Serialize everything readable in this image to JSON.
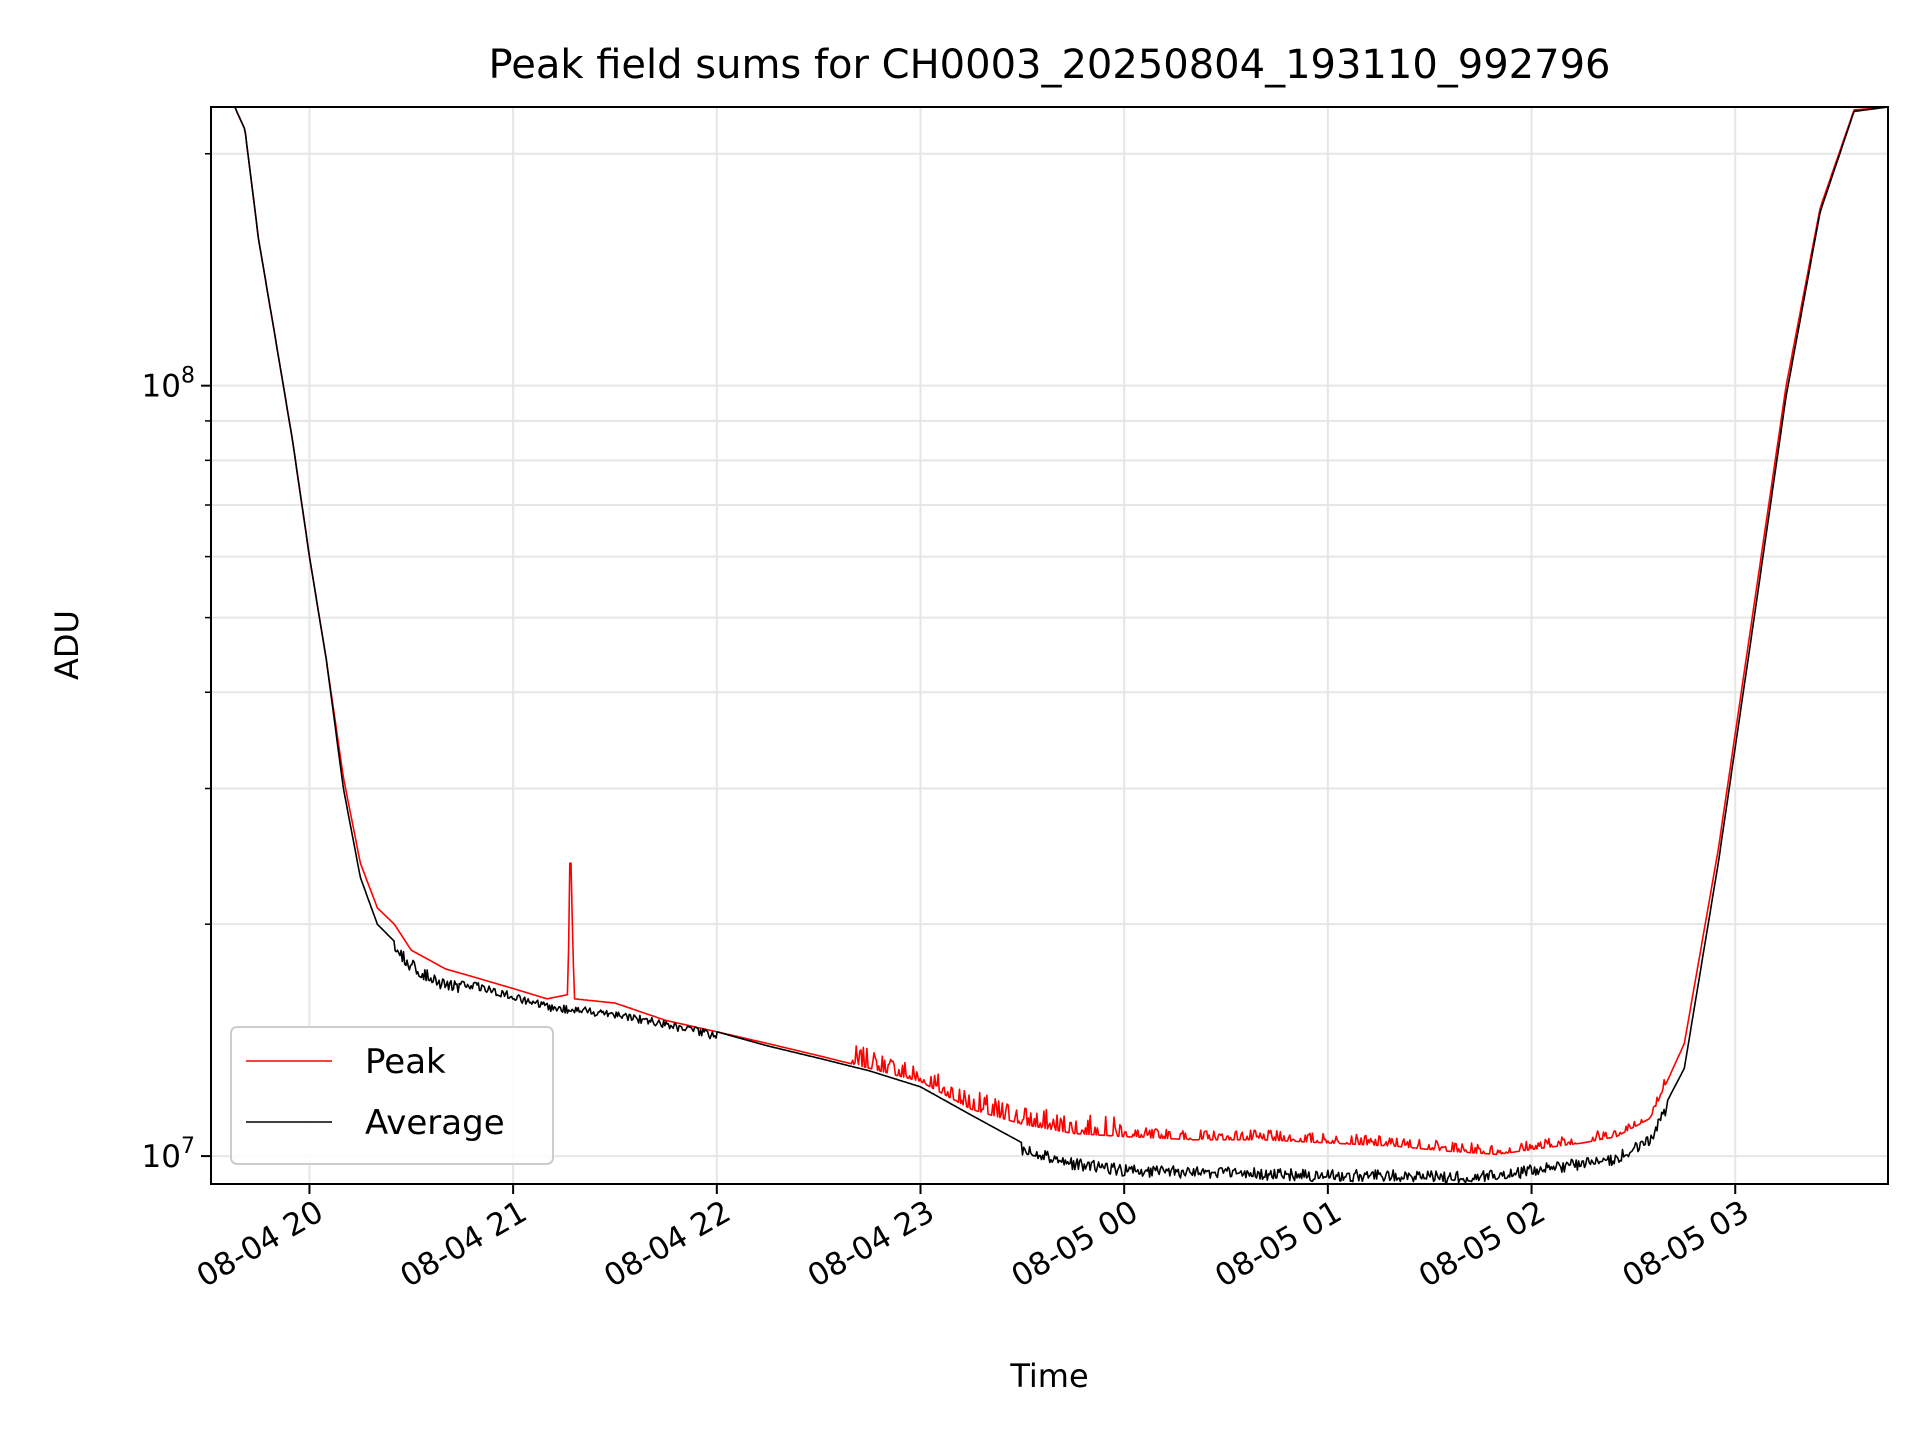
{
  "chart_data": {
    "type": "line",
    "title": "Peak field sums for CH0003_20250804_193110_992796",
    "xlabel": "Time",
    "ylabel": "ADU",
    "yscale": "log",
    "ylim": [
      9200000,
      230000000
    ],
    "xlim": [
      "2025-08-04 19:31",
      "2025-08-05 03:45"
    ],
    "grid": true,
    "legend_position": "lower-left",
    "x_ticks": [
      "08-04 20",
      "08-04 21",
      "08-04 22",
      "08-04 23",
      "08-05 00",
      "08-05 01",
      "08-05 02",
      "08-05 03"
    ],
    "y_ticks": [
      {
        "value": 10000000,
        "base": "10",
        "exponent": "7"
      },
      {
        "value": 100000000,
        "base": "10",
        "exponent": "8"
      }
    ],
    "series": [
      {
        "name": "Peak",
        "color": "#ff0000",
        "x": [
          "2025-08-04 19:31",
          "2025-08-04 19:38",
          "2025-08-04 19:41",
          "2025-08-04 19:45",
          "2025-08-04 19:50",
          "2025-08-04 19:55",
          "2025-08-04 20:00",
          "2025-08-04 20:05",
          "2025-08-04 20:10",
          "2025-08-04 20:15",
          "2025-08-04 20:20",
          "2025-08-04 20:25",
          "2025-08-04 20:30",
          "2025-08-04 20:35",
          "2025-08-04 20:40",
          "2025-08-04 20:50",
          "2025-08-04 21:00",
          "2025-08-04 21:10",
          "2025-08-04 21:16",
          "2025-08-04 21:17",
          "2025-08-04 21:18",
          "2025-08-04 21:30",
          "2025-08-04 21:45",
          "2025-08-04 22:00",
          "2025-08-04 22:15",
          "2025-08-04 22:30",
          "2025-08-04 22:45",
          "2025-08-04 23:00",
          "2025-08-04 23:15",
          "2025-08-04 23:30",
          "2025-08-04 23:45",
          "2025-08-05 00:00",
          "2025-08-05 00:20",
          "2025-08-05 00:40",
          "2025-08-05 01:00",
          "2025-08-05 01:20",
          "2025-08-05 01:35",
          "2025-08-05 01:50",
          "2025-08-05 02:00",
          "2025-08-05 02:15",
          "2025-08-05 02:25",
          "2025-08-05 02:35",
          "2025-08-05 02:45",
          "2025-08-05 02:55",
          "2025-08-05 03:05",
          "2025-08-05 03:15",
          "2025-08-05 03:25",
          "2025-08-05 03:35",
          "2025-08-05 03:45"
        ],
        "y": [
          230000000,
          230000000,
          215000000,
          155000000,
          115000000,
          85000000,
          60000000,
          44000000,
          31000000,
          24000000,
          21000000,
          20000000,
          18500000,
          18000000,
          17500000,
          17000000,
          16500000,
          16000000,
          16200000,
          24000000,
          16000000,
          15800000,
          15000000,
          14500000,
          14000000,
          13500000,
          13000000,
          12500000,
          11500000,
          11000000,
          10700000,
          10600000,
          10500000,
          10500000,
          10400000,
          10300000,
          10150000,
          10050000,
          10200000,
          10400000,
          10600000,
          11200000,
          14000000,
          25000000,
          50000000,
          100000000,
          170000000,
          228000000,
          230000000
        ]
      },
      {
        "name": "Average",
        "color": "#000000",
        "x": [
          "2025-08-04 19:31",
          "2025-08-04 19:38",
          "2025-08-04 19:41",
          "2025-08-04 19:45",
          "2025-08-04 19:50",
          "2025-08-04 19:55",
          "2025-08-04 20:00",
          "2025-08-04 20:05",
          "2025-08-04 20:10",
          "2025-08-04 20:15",
          "2025-08-04 20:20",
          "2025-08-04 20:25",
          "2025-08-04 20:30",
          "2025-08-04 20:35",
          "2025-08-04 20:40",
          "2025-08-04 20:50",
          "2025-08-04 21:00",
          "2025-08-04 21:10",
          "2025-08-04 21:30",
          "2025-08-04 21:45",
          "2025-08-04 22:00",
          "2025-08-04 22:15",
          "2025-08-04 22:30",
          "2025-08-04 22:45",
          "2025-08-04 23:00",
          "2025-08-04 23:15",
          "2025-08-04 23:30",
          "2025-08-04 23:45",
          "2025-08-05 00:00",
          "2025-08-05 00:20",
          "2025-08-05 00:40",
          "2025-08-05 01:00",
          "2025-08-05 01:20",
          "2025-08-05 01:35",
          "2025-08-05 01:50",
          "2025-08-05 02:00",
          "2025-08-05 02:15",
          "2025-08-05 02:25",
          "2025-08-05 02:35",
          "2025-08-05 02:45",
          "2025-08-05 02:55",
          "2025-08-05 03:05",
          "2025-08-05 03:15",
          "2025-08-05 03:25",
          "2025-08-05 03:35",
          "2025-08-05 03:45"
        ],
        "y": [
          230000000,
          230000000,
          215000000,
          155000000,
          115000000,
          85000000,
          60000000,
          44000000,
          30000000,
          23000000,
          20000000,
          19000000,
          18000000,
          17500000,
          17000000,
          16800000,
          16300000,
          15800000,
          15500000,
          15000000,
          14500000,
          13900000,
          13400000,
          12900000,
          12300000,
          11300000,
          10400000,
          9950000,
          9750000,
          9700000,
          9650000,
          9600000,
          9600000,
          9550000,
          9600000,
          9750000,
          9950000,
          10100000,
          10700000,
          13000000,
          24000000,
          48000000,
          97000000,
          168000000,
          227000000,
          230000000
        ]
      }
    ],
    "noise_bands": [
      {
        "series": "Average",
        "from": "2025-08-04 20:25",
        "to": "2025-08-04 20:45",
        "amplitude": 0.04
      },
      {
        "series": "Average",
        "from": "2025-08-04 20:45",
        "to": "2025-08-04 22:00",
        "amplitude": 0.025
      },
      {
        "series": "Average",
        "from": "2025-08-04 23:30",
        "to": "2025-08-05 02:40",
        "amplitude": 0.035
      },
      {
        "series": "Peak",
        "from": "2025-08-04 22:40",
        "to": "2025-08-05 00:00",
        "amplitude": 0.06
      },
      {
        "series": "Peak",
        "from": "2025-08-05 00:00",
        "to": "2025-08-05 02:40",
        "amplitude": 0.03
      }
    ]
  }
}
